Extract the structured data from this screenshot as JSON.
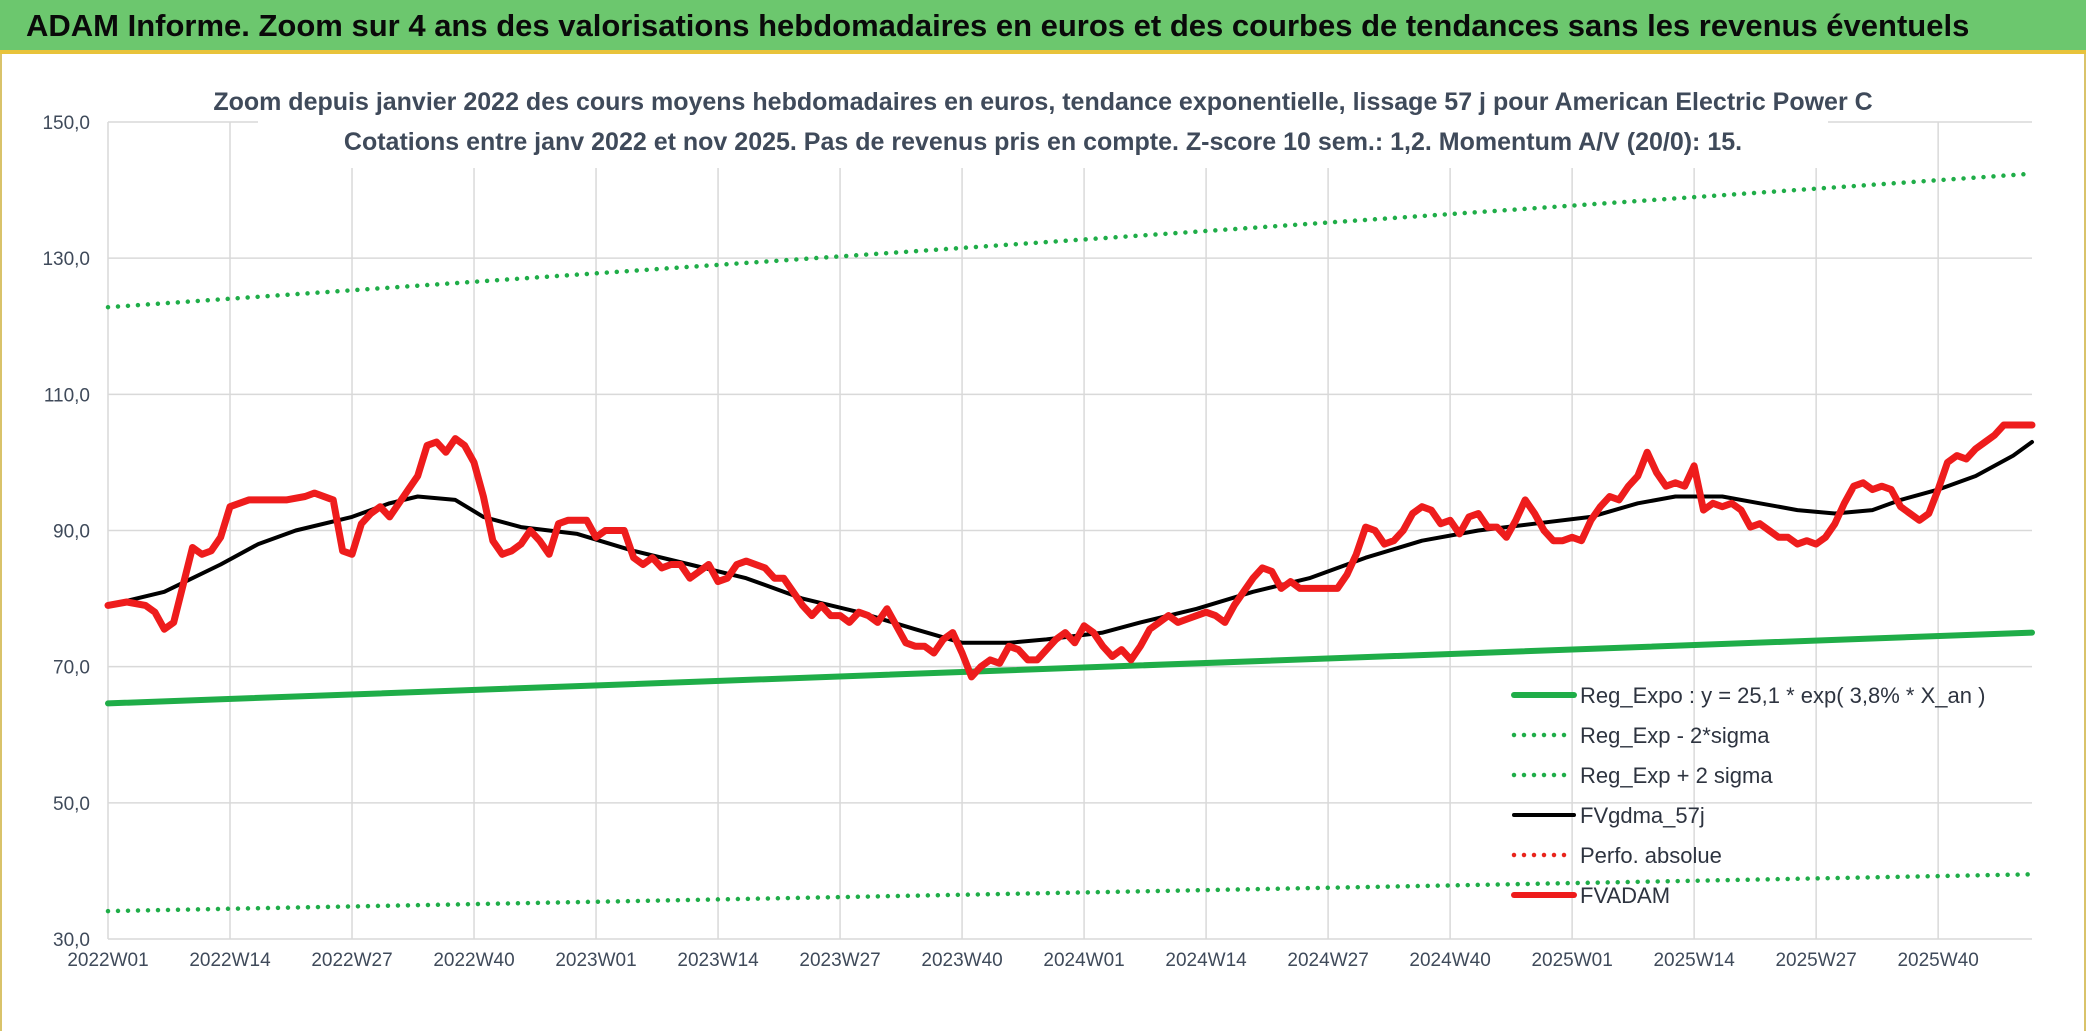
{
  "banner": {
    "title": "ADAM Informe. Zoom sur 4 ans des valorisations hebdomadaires en euros et des courbes de tendances sans les revenus éventuels"
  },
  "chart_data": {
    "type": "line",
    "title": "Zoom depuis janvier 2022 des cours moyens hebdomadaires en euros, tendance exponentielle, lissage 57 j pour American Electric Power C",
    "subtitle": "Cotations entre janv 2022 et nov 2025. Pas de revenus pris en compte. Z-score 10 sem.: 1,2. Momentum A/V (20/0): 15.",
    "xlabel": "",
    "ylabel": "",
    "ylim": [
      30,
      150
    ],
    "yticks": [
      "150,0",
      "130,0",
      "110,0",
      "90,0",
      "70,0",
      "50,0",
      "30,0"
    ],
    "ytick_values": [
      150,
      130,
      110,
      90,
      70,
      50,
      30
    ],
    "x_tick_labels": [
      "2022W01",
      "2022W14",
      "2022W27",
      "2022W40",
      "2023W01",
      "2023W14",
      "2023W27",
      "2023W40",
      "2024W01",
      "2024W14",
      "2024W27",
      "2024W40",
      "2025W01",
      "2025W14",
      "2025W27",
      "2025W40"
    ],
    "x_tick_index": [
      0,
      13,
      26,
      39,
      52,
      65,
      78,
      91,
      104,
      117,
      130,
      143,
      156,
      169,
      182,
      195
    ],
    "n_weeks": 206,
    "grid": true,
    "legend_position": "bottom-right",
    "series": [
      {
        "name": "Reg_Expo : y = 25,1 * exp( 3,8% *  X_an )",
        "color": "#1fad48",
        "style": "thick",
        "points": [
          [
            0,
            64.6
          ],
          [
            205,
            75.0
          ]
        ]
      },
      {
        "name": "Reg_Exp - 2*sigma",
        "color": "#1fad48",
        "style": "dotted",
        "points": [
          [
            0,
            34.1
          ],
          [
            205,
            39.5
          ]
        ]
      },
      {
        "name": "Reg_Exp + 2 sigma",
        "color": "#1fad48",
        "style": "dotted",
        "points": [
          [
            0,
            122.8
          ],
          [
            205,
            142.4
          ]
        ]
      },
      {
        "name": "FVgdma_57j",
        "color": "#000000",
        "style": "solid",
        "points": [
          [
            0,
            79
          ],
          [
            6,
            81
          ],
          [
            12,
            85
          ],
          [
            16,
            88
          ],
          [
            20,
            90
          ],
          [
            26,
            92
          ],
          [
            30,
            94
          ],
          [
            33,
            95
          ],
          [
            37,
            94.5
          ],
          [
            40,
            92
          ],
          [
            44,
            90.5
          ],
          [
            50,
            89.5
          ],
          [
            56,
            87
          ],
          [
            62,
            85
          ],
          [
            68,
            83
          ],
          [
            74,
            80
          ],
          [
            80,
            78
          ],
          [
            86,
            75.5
          ],
          [
            91,
            73.5
          ],
          [
            96,
            73.5
          ],
          [
            100,
            74
          ],
          [
            106,
            75
          ],
          [
            110,
            76.5
          ],
          [
            116,
            78.5
          ],
          [
            122,
            81
          ],
          [
            128,
            83
          ],
          [
            134,
            86
          ],
          [
            140,
            88.5
          ],
          [
            146,
            90
          ],
          [
            152,
            91
          ],
          [
            158,
            92
          ],
          [
            163,
            94
          ],
          [
            167,
            95
          ],
          [
            172,
            95
          ],
          [
            176,
            94
          ],
          [
            180,
            93
          ],
          [
            184,
            92.5
          ],
          [
            188,
            93
          ],
          [
            191,
            94.5
          ],
          [
            195,
            96
          ],
          [
            199,
            98
          ],
          [
            203,
            101
          ],
          [
            205,
            103
          ]
        ]
      },
      {
        "name": "Perfo. absolue",
        "color": "#e8251c",
        "style": "dotted",
        "points": []
      },
      {
        "name": "FVADAM",
        "color": "#ee1c1c",
        "style": "thick",
        "points": [
          [
            0,
            79
          ],
          [
            2,
            79.5
          ],
          [
            4,
            79
          ],
          [
            5,
            78
          ],
          [
            6,
            75.5
          ],
          [
            7,
            76.5
          ],
          [
            8,
            82
          ],
          [
            9,
            87.5
          ],
          [
            10,
            86.5
          ],
          [
            11,
            87
          ],
          [
            12,
            89
          ],
          [
            13,
            93.5
          ],
          [
            15,
            94.5
          ],
          [
            17,
            94.5
          ],
          [
            19,
            94.5
          ],
          [
            21,
            95
          ],
          [
            22,
            95.5
          ],
          [
            24,
            94.5
          ],
          [
            25,
            87
          ],
          [
            26,
            86.5
          ],
          [
            27,
            91
          ],
          [
            28,
            92.5
          ],
          [
            29,
            93.5
          ],
          [
            30,
            92
          ],
          [
            31,
            94
          ],
          [
            32,
            96
          ],
          [
            33,
            98
          ],
          [
            34,
            102.5
          ],
          [
            35,
            103
          ],
          [
            36,
            101.5
          ],
          [
            37,
            103.5
          ],
          [
            38,
            102.5
          ],
          [
            39,
            100
          ],
          [
            40,
            95
          ],
          [
            41,
            88.5
          ],
          [
            42,
            86.5
          ],
          [
            43,
            87
          ],
          [
            44,
            88
          ],
          [
            45,
            90
          ],
          [
            46,
            88.5
          ],
          [
            47,
            86.5
          ],
          [
            48,
            91
          ],
          [
            49,
            91.5
          ],
          [
            51,
            91.5
          ],
          [
            52,
            89
          ],
          [
            53,
            90
          ],
          [
            55,
            90
          ],
          [
            56,
            86
          ],
          [
            57,
            85
          ],
          [
            58,
            86
          ],
          [
            59,
            84.5
          ],
          [
            60,
            85
          ],
          [
            61,
            85
          ],
          [
            62,
            83
          ],
          [
            63,
            84
          ],
          [
            64,
            85
          ],
          [
            65,
            82.5
          ],
          [
            66,
            83
          ],
          [
            67,
            85
          ],
          [
            68,
            85.5
          ],
          [
            70,
            84.5
          ],
          [
            71,
            83
          ],
          [
            72,
            83
          ],
          [
            73,
            81
          ],
          [
            74,
            79
          ],
          [
            75,
            77.5
          ],
          [
            76,
            79
          ],
          [
            77,
            77.5
          ],
          [
            78,
            77.5
          ],
          [
            79,
            76.5
          ],
          [
            80,
            78
          ],
          [
            81,
            77.5
          ],
          [
            82,
            76.5
          ],
          [
            83,
            78.5
          ],
          [
            84,
            76
          ],
          [
            85,
            73.5
          ],
          [
            86,
            73
          ],
          [
            87,
            73
          ],
          [
            88,
            72
          ],
          [
            89,
            74
          ],
          [
            90,
            75
          ],
          [
            91,
            72
          ],
          [
            92,
            68.5
          ],
          [
            93,
            70
          ],
          [
            94,
            71
          ],
          [
            95,
            70.5
          ],
          [
            96,
            73
          ],
          [
            97,
            72.5
          ],
          [
            98,
            71
          ],
          [
            99,
            71
          ],
          [
            100,
            72.5
          ],
          [
            101,
            74
          ],
          [
            102,
            75
          ],
          [
            103,
            73.5
          ],
          [
            104,
            76
          ],
          [
            105,
            75
          ],
          [
            106,
            73
          ],
          [
            107,
            71.5
          ],
          [
            108,
            72.5
          ],
          [
            109,
            71
          ],
          [
            110,
            73
          ],
          [
            111,
            75.5
          ],
          [
            112,
            76.5
          ],
          [
            113,
            77.5
          ],
          [
            114,
            76.5
          ],
          [
            115,
            77
          ],
          [
            116,
            77.5
          ],
          [
            117,
            78
          ],
          [
            118,
            77.5
          ],
          [
            119,
            76.5
          ],
          [
            120,
            79
          ],
          [
            121,
            81
          ],
          [
            122,
            83
          ],
          [
            123,
            84.5
          ],
          [
            124,
            84
          ],
          [
            125,
            81.5
          ],
          [
            126,
            82.5
          ],
          [
            127,
            81.5
          ],
          [
            129,
            81.5
          ],
          [
            131,
            81.5
          ],
          [
            132,
            83.5
          ],
          [
            133,
            86.5
          ],
          [
            134,
            90.5
          ],
          [
            135,
            90
          ],
          [
            136,
            88
          ],
          [
            137,
            88.5
          ],
          [
            138,
            90
          ],
          [
            139,
            92.5
          ],
          [
            140,
            93.5
          ],
          [
            141,
            93
          ],
          [
            142,
            91
          ],
          [
            143,
            91.5
          ],
          [
            144,
            89.5
          ],
          [
            145,
            92
          ],
          [
            146,
            92.5
          ],
          [
            147,
            90.5
          ],
          [
            148,
            90.5
          ],
          [
            149,
            89
          ],
          [
            150,
            91.5
          ],
          [
            151,
            94.5
          ],
          [
            152,
            92.5
          ],
          [
            153,
            90
          ],
          [
            154,
            88.5
          ],
          [
            155,
            88.5
          ],
          [
            156,
            89
          ],
          [
            157,
            88.5
          ],
          [
            158,
            91.5
          ],
          [
            159,
            93.5
          ],
          [
            160,
            95
          ],
          [
            161,
            94.5
          ],
          [
            162,
            96.5
          ],
          [
            163,
            98
          ],
          [
            164,
            101.5
          ],
          [
            165,
            98.5
          ],
          [
            166,
            96.5
          ],
          [
            167,
            97
          ],
          [
            168,
            96.5
          ],
          [
            169,
            99.5
          ],
          [
            170,
            93
          ],
          [
            171,
            94
          ],
          [
            172,
            93.5
          ],
          [
            173,
            94
          ],
          [
            174,
            93
          ],
          [
            175,
            90.5
          ],
          [
            176,
            91
          ],
          [
            177,
            90
          ],
          [
            178,
            89
          ],
          [
            179,
            89
          ],
          [
            180,
            88
          ],
          [
            181,
            88.5
          ],
          [
            182,
            88
          ],
          [
            183,
            89
          ],
          [
            184,
            91
          ],
          [
            185,
            94
          ],
          [
            186,
            96.5
          ],
          [
            187,
            97
          ],
          [
            188,
            96
          ],
          [
            189,
            96.5
          ],
          [
            190,
            96
          ],
          [
            191,
            93.5
          ],
          [
            192,
            92.5
          ],
          [
            193,
            91.5
          ],
          [
            194,
            92.5
          ],
          [
            195,
            96
          ],
          [
            196,
            100
          ],
          [
            197,
            101
          ],
          [
            198,
            100.5
          ],
          [
            199,
            102
          ],
          [
            200,
            103
          ],
          [
            201,
            104
          ],
          [
            202,
            105.5
          ],
          [
            204,
            105.5
          ],
          [
            205,
            105.5
          ]
        ]
      }
    ]
  }
}
